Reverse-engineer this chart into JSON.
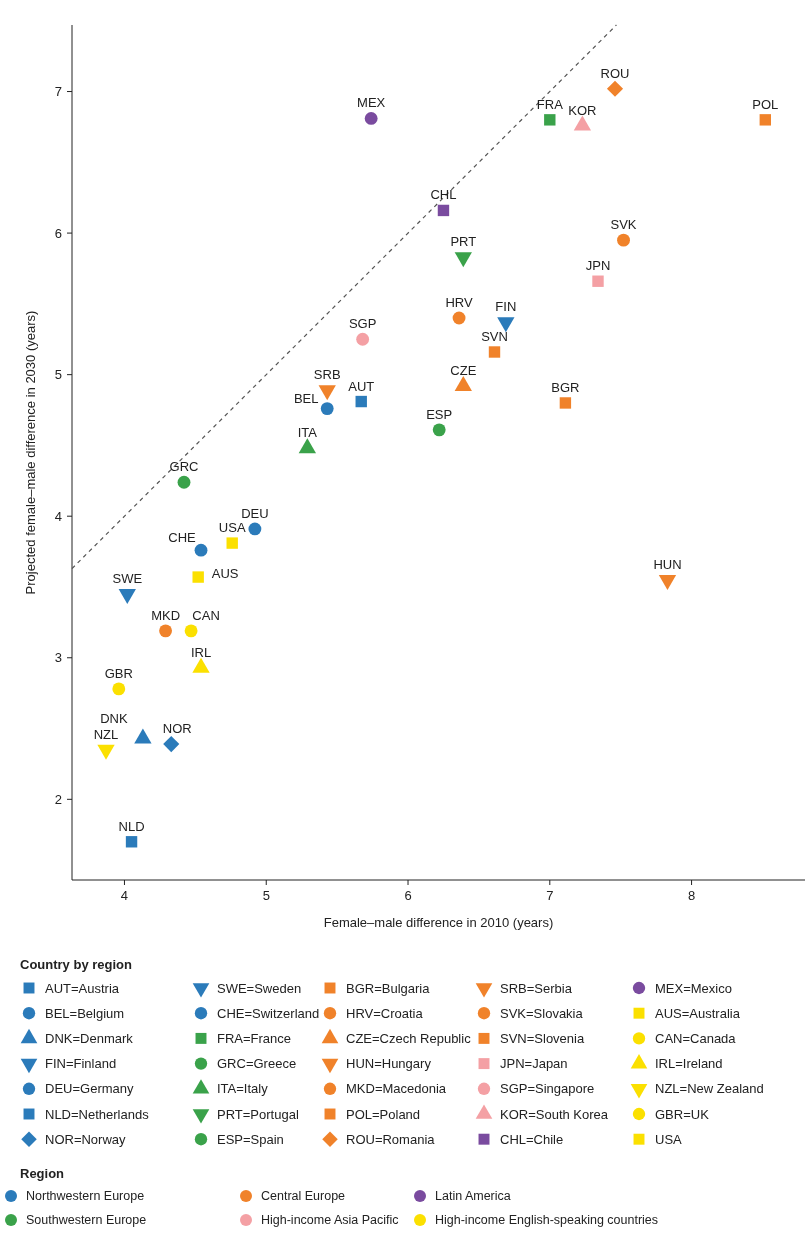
{
  "chart_data": {
    "type": "scatter",
    "xlabel": "Female–male difference in 2010 (years)",
    "ylabel": "Projected female–male difference in 2030 (years)",
    "xlim": [
      3.63,
      8.8
    ],
    "ylim": [
      1.43,
      7.47
    ],
    "xticks": [
      4,
      5,
      6,
      7,
      8
    ],
    "yticks": [
      2,
      3,
      4,
      5,
      6,
      7
    ],
    "legend": "bottom",
    "legend_title": "Country by region",
    "series": [
      {
        "type": "line",
        "x": [
          3.63,
          7.47
        ],
        "values": [
          3.63,
          7.47
        ],
        "color": "#555555",
        "line_style": "dashed",
        "marker": "none"
      },
      {
        "name": "AUT=Austria",
        "color": "#2b7bba",
        "marker": "square",
        "x": [
          5.67
        ],
        "values": [
          4.81
        ]
      },
      {
        "name": "BEL=Belgium",
        "color": "#2b7bba",
        "marker": "circle",
        "x": [
          5.43
        ],
        "values": [
          4.76
        ]
      },
      {
        "name": "DNK=Denmark",
        "color": "#2b7bba",
        "marker": "triangle",
        "x": [
          4.13
        ],
        "values": [
          2.43
        ]
      },
      {
        "name": "FIN=Finland",
        "color": "#2b7bba",
        "marker": "triangle-down",
        "x": [
          6.69
        ],
        "values": [
          5.37
        ]
      },
      {
        "name": "DEU=Germany",
        "color": "#2b7bba",
        "marker": "circle",
        "x": [
          4.92
        ],
        "values": [
          3.91
        ]
      },
      {
        "name": "NLD=Netherlands",
        "color": "#2b7bba",
        "marker": "square",
        "x": [
          4.05
        ],
        "values": [
          1.7
        ]
      },
      {
        "name": "NOR=Norway",
        "color": "#2b7bba",
        "marker": "diamond",
        "x": [
          4.33
        ],
        "values": [
          2.39
        ]
      },
      {
        "name": "SWE=Sweden",
        "color": "#2b7bba",
        "marker": "triangle-down",
        "x": [
          4.02
        ],
        "values": [
          3.45
        ]
      },
      {
        "name": "CHE=Switzerland",
        "color": "#2b7bba",
        "marker": "circle",
        "x": [
          4.54
        ],
        "values": [
          3.76
        ]
      },
      {
        "name": "FRA=France",
        "color": "#3aa24a",
        "marker": "square",
        "x": [
          7.0
        ],
        "values": [
          6.8
        ]
      },
      {
        "name": "GRC=Greece",
        "color": "#3aa24a",
        "marker": "circle",
        "x": [
          4.42
        ],
        "values": [
          4.24
        ]
      },
      {
        "name": "ITA=Italy",
        "color": "#3aa24a",
        "marker": "triangle",
        "x": [
          5.29
        ],
        "values": [
          4.48
        ]
      },
      {
        "name": "PRT=Portugal",
        "color": "#3aa24a",
        "marker": "triangle-down",
        "x": [
          6.39
        ],
        "values": [
          5.83
        ]
      },
      {
        "name": "ESP=Spain",
        "color": "#3aa24a",
        "marker": "circle",
        "x": [
          6.22
        ],
        "values": [
          4.61
        ]
      },
      {
        "name": "BGR=Bulgaria",
        "color": "#f0822a",
        "marker": "square",
        "x": [
          7.11
        ],
        "values": [
          4.8
        ]
      },
      {
        "name": "HRV=Croatia",
        "color": "#f0822a",
        "marker": "circle",
        "x": [
          6.36
        ],
        "values": [
          5.4
        ]
      },
      {
        "name": "CZE=Czech Republic",
        "color": "#f0822a",
        "marker": "triangle",
        "x": [
          6.39
        ],
        "values": [
          4.92
        ]
      },
      {
        "name": "HUN=Hungary",
        "color": "#f0822a",
        "marker": "triangle-down",
        "x": [
          7.83
        ],
        "values": [
          3.55
        ]
      },
      {
        "name": "MKD=Macedonia",
        "color": "#f0822a",
        "marker": "circle",
        "x": [
          4.29
        ],
        "values": [
          3.19
        ]
      },
      {
        "name": "POL=Poland",
        "color": "#f0822a",
        "marker": "square",
        "x": [
          8.52
        ],
        "values": [
          6.8
        ]
      },
      {
        "name": "ROU=Romania",
        "color": "#f0822a",
        "marker": "diamond",
        "x": [
          7.46
        ],
        "values": [
          7.02
        ]
      },
      {
        "name": "SRB=Serbia",
        "color": "#f0822a",
        "marker": "triangle-down",
        "x": [
          5.43
        ],
        "values": [
          4.89
        ]
      },
      {
        "name": "SVK=Slovakia",
        "color": "#f0822a",
        "marker": "circle",
        "x": [
          7.52
        ],
        "values": [
          5.95
        ]
      },
      {
        "name": "SVN=Slovenia",
        "color": "#f0822a",
        "marker": "square",
        "x": [
          6.61
        ],
        "values": [
          5.16
        ]
      },
      {
        "name": "JPN=Japan",
        "color": "#f4a0a4",
        "marker": "square",
        "x": [
          7.34
        ],
        "values": [
          5.66
        ]
      },
      {
        "name": "SGP=Singapore",
        "color": "#f4a0a4",
        "marker": "circle",
        "x": [
          5.68
        ],
        "values": [
          5.25
        ]
      },
      {
        "name": "KOR=South Korea",
        "color": "#f4a0a4",
        "marker": "triangle",
        "x": [
          7.23
        ],
        "values": [
          6.76
        ]
      },
      {
        "name": "CHL=Chile",
        "color": "#7a4b9f",
        "marker": "square",
        "x": [
          6.25
        ],
        "values": [
          6.16
        ]
      },
      {
        "name": "MEX=Mexico",
        "color": "#7a4b9f",
        "marker": "circle",
        "x": [
          5.74
        ],
        "values": [
          6.81
        ]
      },
      {
        "name": "AUS=Australia",
        "color": "#fbe000",
        "marker": "square",
        "x": [
          4.52
        ],
        "values": [
          3.57
        ]
      },
      {
        "name": "CAN=Canada",
        "color": "#fbe000",
        "marker": "circle",
        "x": [
          4.47
        ],
        "values": [
          3.19
        ]
      },
      {
        "name": "IRL=Ireland",
        "color": "#fbe000",
        "marker": "triangle",
        "x": [
          4.54
        ],
        "values": [
          2.93
        ]
      },
      {
        "name": "NZL=New Zealand",
        "color": "#fbe000",
        "marker": "triangle-down",
        "x": [
          3.87
        ],
        "values": [
          2.35
        ]
      },
      {
        "name": "GBR=UK",
        "color": "#fbe000",
        "marker": "circle",
        "x": [
          3.96
        ],
        "values": [
          2.78
        ]
      },
      {
        "name": "USA",
        "color": "#fbe000",
        "marker": "square",
        "x": [
          4.76
        ],
        "values": [
          3.81
        ]
      }
    ],
    "annotations": [
      {
        "text": "MEX",
        "x": 5.74,
        "y": 6.81
      },
      {
        "text": "ROU",
        "x": 7.46,
        "y": 7.02
      },
      {
        "text": "FRA",
        "x": 7.0,
        "y": 6.8
      },
      {
        "text": "KOR",
        "x": 7.23,
        "y": 6.76
      },
      {
        "text": "POL",
        "x": 8.52,
        "y": 6.8
      },
      {
        "text": "CHL",
        "x": 6.25,
        "y": 6.16
      },
      {
        "text": "PRT",
        "x": 6.39,
        "y": 5.83
      },
      {
        "text": "SVK",
        "x": 7.52,
        "y": 5.95
      },
      {
        "text": "JPN",
        "x": 7.34,
        "y": 5.66
      },
      {
        "text": "HRV",
        "x": 6.36,
        "y": 5.4
      },
      {
        "text": "FIN",
        "x": 6.69,
        "y": 5.37
      },
      {
        "text": "SGP",
        "x": 5.68,
        "y": 5.25
      },
      {
        "text": "SVN",
        "x": 6.61,
        "y": 5.16
      },
      {
        "text": "SRB",
        "x": 5.43,
        "y": 4.89
      },
      {
        "text": "AUT",
        "x": 5.67,
        "y": 4.81
      },
      {
        "text": "BEL",
        "x": 5.43,
        "y": 4.76
      },
      {
        "text": "CZE",
        "x": 6.39,
        "y": 4.92
      },
      {
        "text": "BGR",
        "x": 7.11,
        "y": 4.8
      },
      {
        "text": "ESP",
        "x": 6.22,
        "y": 4.61
      },
      {
        "text": "ITA",
        "x": 5.29,
        "y": 4.48
      },
      {
        "text": "GRC",
        "x": 4.42,
        "y": 4.24
      },
      {
        "text": "DEU",
        "x": 4.92,
        "y": 3.91
      },
      {
        "text": "CHE",
        "x": 4.54,
        "y": 3.76
      },
      {
        "text": "USA",
        "x": 4.76,
        "y": 3.81
      },
      {
        "text": "SWE",
        "x": 4.02,
        "y": 3.45
      },
      {
        "text": "AUS",
        "x": 4.52,
        "y": 3.57
      },
      {
        "text": "HUN",
        "x": 7.83,
        "y": 3.55
      },
      {
        "text": "MKD",
        "x": 4.29,
        "y": 3.19
      },
      {
        "text": "CAN",
        "x": 4.47,
        "y": 3.19
      },
      {
        "text": "IRL",
        "x": 4.54,
        "y": 2.93
      },
      {
        "text": "GBR",
        "x": 3.96,
        "y": 2.78
      },
      {
        "text": "DNK",
        "x": 4.13,
        "y": 2.43
      },
      {
        "text": "NOR",
        "x": 4.33,
        "y": 2.39
      },
      {
        "text": "NZL",
        "x": 3.87,
        "y": 2.35
      },
      {
        "text": "NLD",
        "x": 4.05,
        "y": 1.7
      },
      "Region",
      "Northwestern Europe",
      "Southwestern Europe",
      "Central Europe",
      "High-income Asia Pacific",
      "Latin America",
      "High-income English-speaking countries"
    ]
  }
}
